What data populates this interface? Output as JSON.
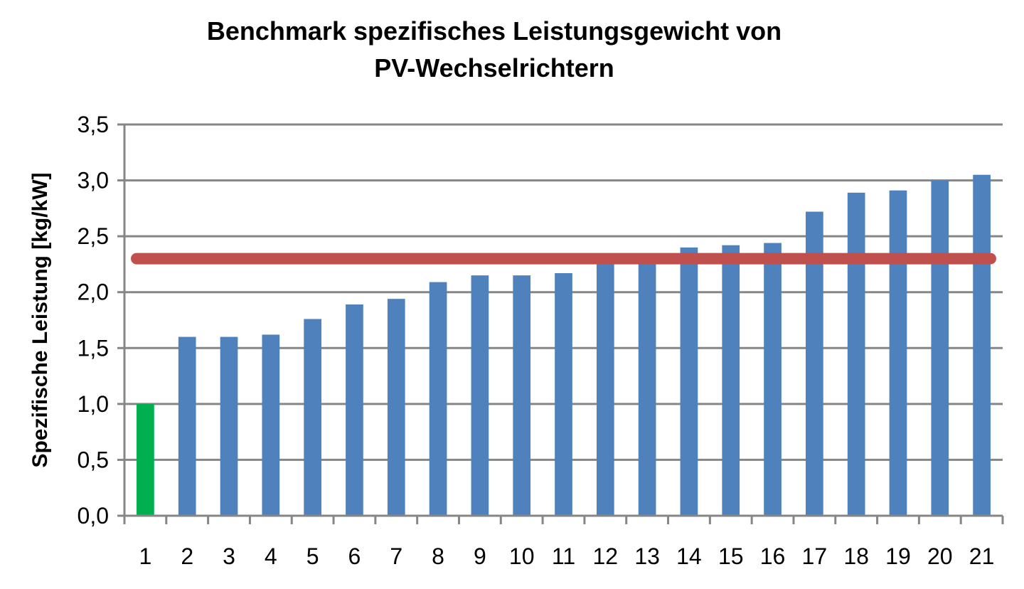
{
  "chart_data": {
    "type": "bar",
    "title_lines": [
      "Benchmark spezifisches Leistungsgewicht von",
      "PV-Wechselrichtern"
    ],
    "xlabel": "",
    "ylabel": "Spezifische Leistung  [kg/kW]",
    "categories": [
      "1",
      "2",
      "3",
      "4",
      "5",
      "6",
      "7",
      "8",
      "9",
      "10",
      "11",
      "12",
      "13",
      "14",
      "15",
      "16",
      "17",
      "18",
      "19",
      "20",
      "21"
    ],
    "values": [
      1.0,
      1.6,
      1.6,
      1.62,
      1.76,
      1.89,
      1.94,
      2.09,
      2.15,
      2.15,
      2.17,
      2.29,
      2.3,
      2.4,
      2.42,
      2.44,
      2.72,
      2.89,
      2.91,
      3.0,
      3.05
    ],
    "y_tick_labels": [
      "0,0",
      "0,5",
      "1,0",
      "1,5",
      "2,0",
      "2,5",
      "3,0",
      "3,5"
    ],
    "y_ticks": [
      0,
      0.5,
      1.0,
      1.5,
      2.0,
      2.5,
      3.0,
      3.5
    ],
    "ylim": [
      0,
      3.5
    ],
    "grid": true,
    "reference_line": 2.3,
    "colors": {
      "bar": "#4f81bd",
      "highlight_bar": "#00b050",
      "reference_line": "#c0504d",
      "grid": "#868686",
      "axis": "#868686"
    },
    "highlight_index": 0
  }
}
